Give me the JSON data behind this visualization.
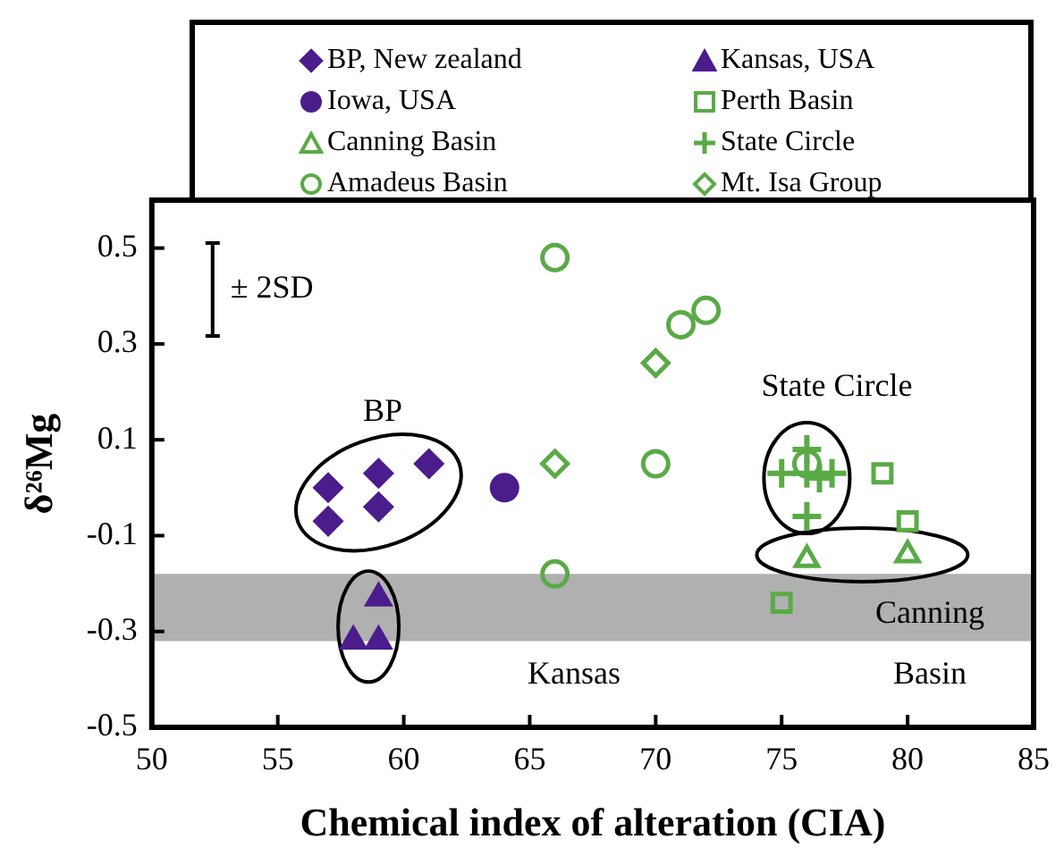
{
  "chart_data": {
    "type": "scatter",
    "xlabel": "Chemical index of alteration (CIA)",
    "ylabel": "δ²⁶Mg",
    "xlim": [
      50,
      85
    ],
    "xticks": [
      50,
      55,
      60,
      65,
      70,
      75,
      80,
      85
    ],
    "ylim": [
      -0.5,
      0.6
    ],
    "yticks": [
      -0.5,
      -0.3,
      -0.1,
      0.1,
      0.3,
      0.5
    ],
    "grid": false,
    "legend": "top",
    "series": [
      {
        "name": "BP, New zealand",
        "color": "#4b1c8c",
        "marker": "diamond",
        "x": [
          57,
          57,
          59,
          59,
          61
        ],
        "values": [
          0.0,
          -0.07,
          0.03,
          -0.04,
          0.05
        ]
      },
      {
        "name": "Kansas, USA",
        "color": "#4b1c8c",
        "marker": "triangle",
        "x": [
          59,
          58,
          59
        ],
        "values": [
          -0.23,
          -0.32,
          -0.32
        ]
      },
      {
        "name": "Iowa, USA",
        "color": "#4b1c8c",
        "marker": "circle",
        "x": [
          64
        ],
        "values": [
          0.0
        ]
      },
      {
        "name": "Perth Basin",
        "color": "#5aaa46",
        "marker": "square",
        "x": [
          79,
          80,
          75
        ],
        "values": [
          0.03,
          -0.07,
          -0.24
        ]
      },
      {
        "name": "Canning Basin",
        "color": "#5aaa46",
        "marker": "triangle",
        "x": [
          76,
          80
        ],
        "values": [
          -0.15,
          -0.14
        ]
      },
      {
        "name": "State Circle",
        "color": "#5aaa46",
        "marker": "cross",
        "x": [
          76,
          75,
          76,
          77,
          76.5,
          76
        ],
        "values": [
          0.08,
          0.03,
          0.03,
          0.03,
          0.02,
          -0.06
        ]
      },
      {
        "name": "Amadeus Basin",
        "color": "#5aaa46",
        "marker": "circle",
        "x": [
          66,
          66,
          71,
          72,
          70,
          76
        ],
        "values": [
          0.48,
          -0.18,
          0.34,
          0.37,
          0.05,
          0.05
        ]
      },
      {
        "name": "Mt. Isa Group",
        "color": "#5aaa46",
        "marker": "diamond",
        "x": [
          66,
          70
        ],
        "values": [
          0.05,
          0.26
        ]
      }
    ],
    "bands": [
      {
        "axis": "y",
        "from": -0.32,
        "to": -0.18,
        "color": "#b0b0b0"
      }
    ],
    "annotations": [
      "± 2SD",
      "BP",
      "Kansas",
      "State Circle",
      "Canning Basin"
    ]
  }
}
